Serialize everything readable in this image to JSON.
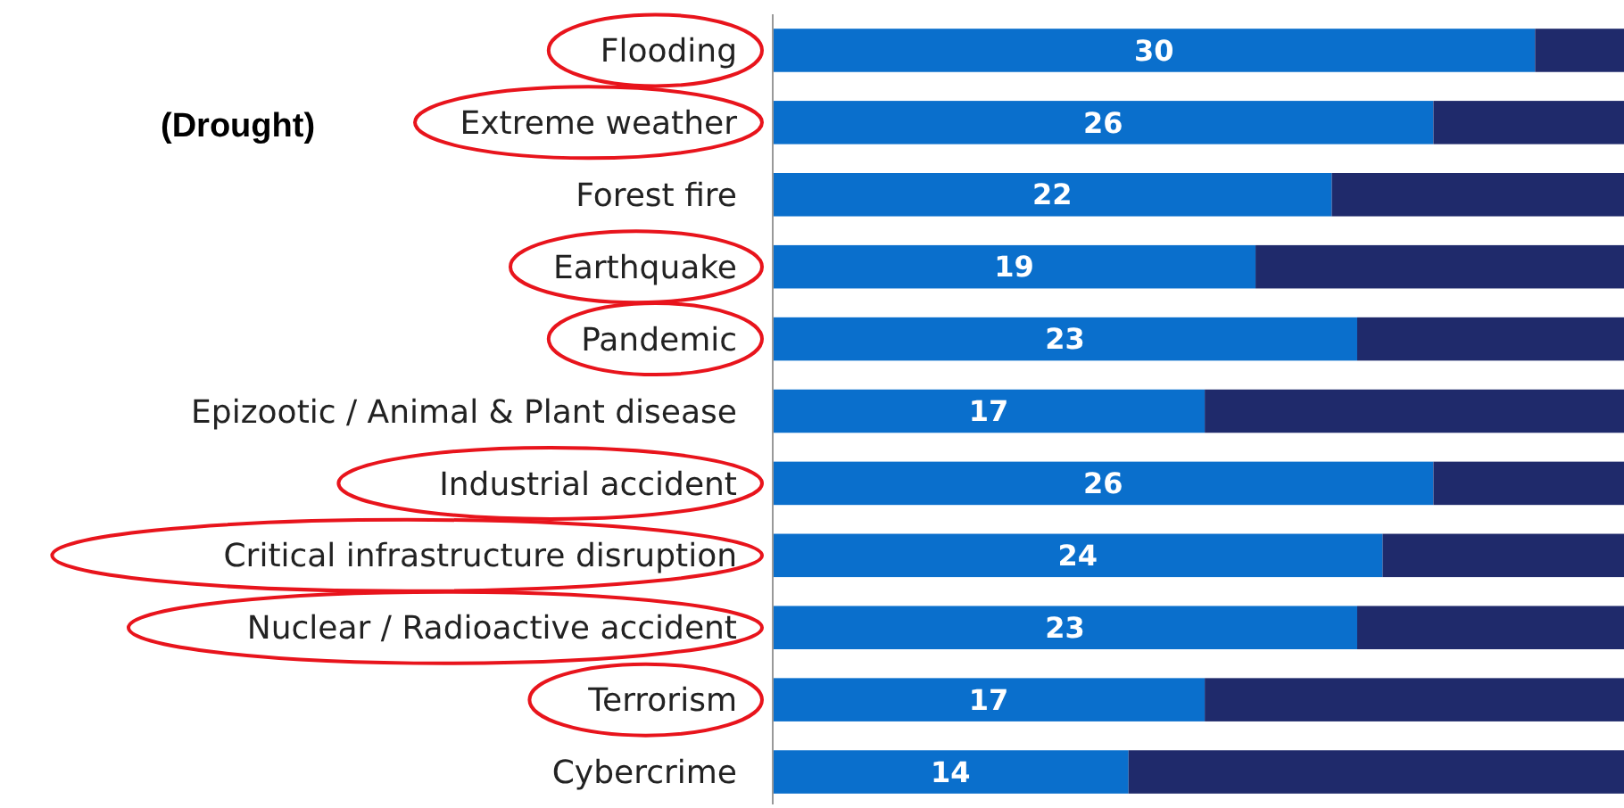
{
  "chart_data": {
    "type": "bar",
    "orientation": "horizontal",
    "stacked": true,
    "relative": false,
    "categories": [
      "Flooding",
      "Extreme weather",
      "Forest fire ",
      "Earthquake",
      "Pandemic",
      "Epizootic / Animal & Plant disease",
      "Industrial accident",
      "Critical infrastructure disruption",
      "Nuclear / Radioactive accident",
      "Terrorism",
      "Cybercrime"
    ],
    "xlim": [
      0,
      33.5
    ],
    "series": [
      {
        "color": "#0a6fcc",
        "values": [
          30,
          26,
          22,
          19,
          23,
          17,
          26,
          24,
          23,
          17,
          14
        ],
        "value_labels": [
          "30",
          "26",
          "22",
          "19",
          "23",
          "17",
          "26",
          "24",
          "23",
          "17",
          "14"
        ]
      },
      {
        "color": "#1f2a6b",
        "values": [
          3.5,
          7.5,
          11.5,
          14.5,
          10.5,
          16.5,
          7.5,
          9.5,
          10.5,
          16.5,
          19.5
        ]
      }
    ],
    "annotations": [
      "(Drought)"
    ]
  }
}
